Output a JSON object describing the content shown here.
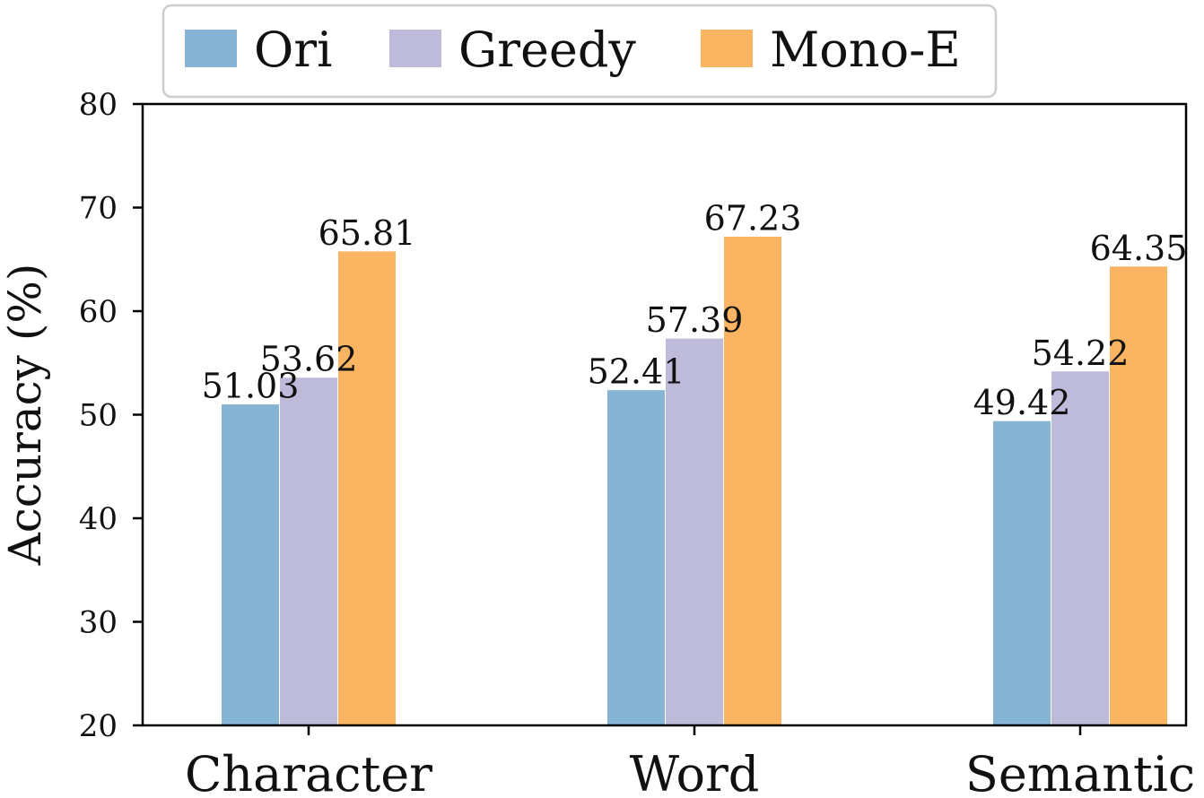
{
  "chart_data": {
    "type": "bar",
    "categories": [
      "Character",
      "Word",
      "Semantic"
    ],
    "series": [
      {
        "name": "Ori",
        "color": "#85b4d4",
        "values": [
          51.03,
          52.41,
          49.42
        ]
      },
      {
        "name": "Greedy",
        "color": "#bebad9",
        "values": [
          53.62,
          57.39,
          54.22
        ]
      },
      {
        "name": "Mono-E",
        "color": "#fbb461",
        "values": [
          65.81,
          67.23,
          64.35
        ]
      }
    ],
    "data_labels": [
      [
        "51.03",
        "52.41",
        "49.42"
      ],
      [
        "53.62",
        "57.39",
        "54.22"
      ],
      [
        "65.81",
        "67.23",
        "64.35"
      ]
    ],
    "title": "",
    "xlabel": "",
    "ylabel": "Accuracy (%)",
    "ylim": [
      20,
      80
    ],
    "yticks": [
      20,
      30,
      40,
      50,
      60,
      70,
      80
    ],
    "ytick_labels": [
      "20",
      "30",
      "40",
      "50",
      "60",
      "70",
      "80"
    ],
    "grid": false,
    "legend_position": "top"
  }
}
